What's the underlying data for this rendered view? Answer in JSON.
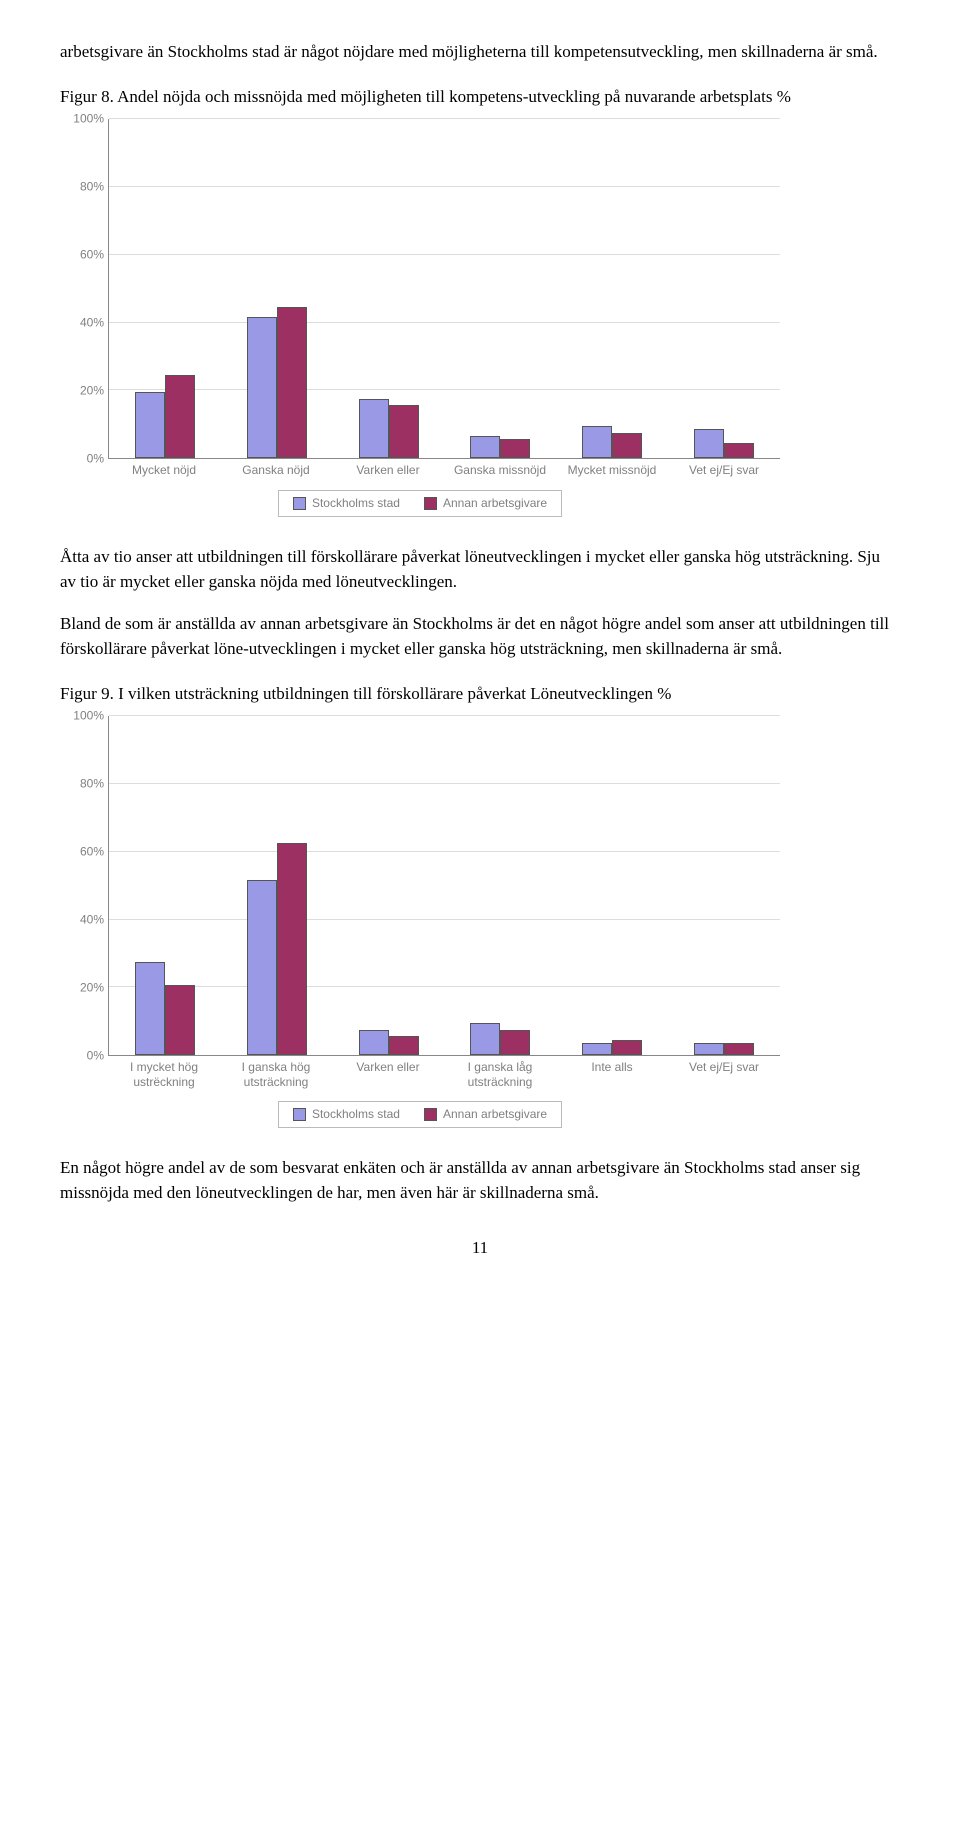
{
  "intro_para": "arbetsgivare än Stockholms stad är något nöjdare med möjligheterna till kompetensutveckling, men skillnaderna är små.",
  "figure8": {
    "caption": "Figur 8. Andel nöjda och missnöjda med möjligheten till kompetens-utveckling på nuvarande arbetsplats %",
    "y_ticks": [
      "0%",
      "20%",
      "40%",
      "60%",
      "80%",
      "100%"
    ],
    "categories": [
      "Mycket nöjd",
      "Ganska nöjd",
      "Varken eller",
      "Ganska missnöjd",
      "Mycket missnöjd",
      "Vet ej/Ej svar"
    ],
    "series1_label": "Stockholms stad",
    "series2_label": "Annan arbetsgivare",
    "series1_values": [
      19,
      41,
      17,
      6,
      9,
      8
    ],
    "series2_values": [
      24,
      44,
      15,
      5,
      7,
      4
    ],
    "series1_color": "#9999e6",
    "series2_color": "#9c3063",
    "grid_color": "#dddddd",
    "axis_color": "#888888",
    "ylim": 100
  },
  "para2": "Åtta av tio anser att utbildningen till förskollärare påverkat löneutvecklingen i mycket eller ganska hög utsträckning. Sju av tio är mycket eller ganska nöjda med löneutvecklingen.",
  "para3": "Bland de som är anställda av annan arbetsgivare än Stockholms är det en något högre andel som anser att utbildningen till förskollärare påverkat löne-utvecklingen i mycket eller ganska hög utsträckning, men skillnaderna är små.",
  "figure9": {
    "caption": "Figur 9. I vilken utsträckning utbildningen till förskollärare påverkat Löneutvecklingen %",
    "y_ticks": [
      "0%",
      "20%",
      "40%",
      "60%",
      "80%",
      "100%"
    ],
    "categories": [
      "I mycket hög ustrëckning",
      "I ganska hög utsträckning",
      "Varken eller",
      "I ganska låg utsträckning",
      "Inte alls",
      "Vet ej/Ej svar"
    ],
    "series1_label": "Stockholms stad",
    "series2_label": "Annan arbetsgivare",
    "series1_values": [
      27,
      51,
      7,
      9,
      3,
      3
    ],
    "series2_values": [
      20,
      62,
      5,
      7,
      4,
      3
    ],
    "series1_color": "#9999e6",
    "series2_color": "#9c3063",
    "grid_color": "#dddddd",
    "axis_color": "#888888",
    "ylim": 100
  },
  "para4": "En något högre andel av de som besvarat enkäten och är anställda av annan arbetsgivare än Stockholms stad anser sig missnöjda med den löneutvecklingen de har, men även här är skillnaderna små.",
  "page_number": "11"
}
